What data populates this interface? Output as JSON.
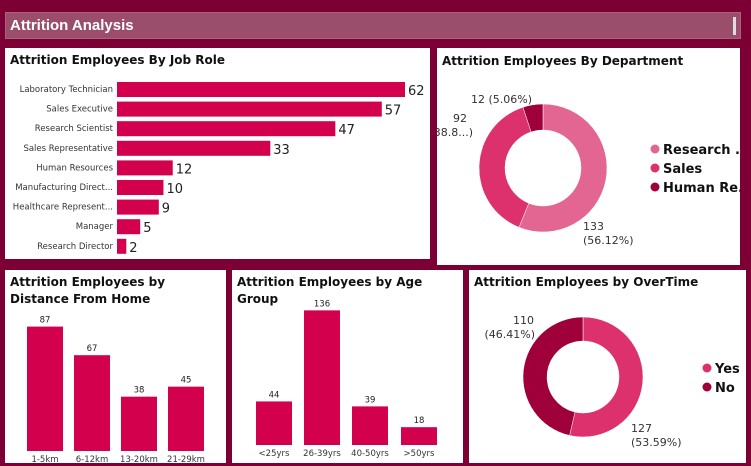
{
  "header": {
    "title": "Attrition Analysis"
  },
  "colors": {
    "bar": "#d3004e",
    "research": "#e36692",
    "sales": "#dc316c",
    "hr": "#a0003a",
    "yes": "#dc316c",
    "no": "#a0003a",
    "background": "#7c0033"
  },
  "chart_data": [
    {
      "type": "bar",
      "orientation": "horizontal",
      "title": "Attrition Employees By Job Role",
      "categories": [
        "Laboratory Technician",
        "Sales Executive",
        "Research Scientist",
        "Sales Representative",
        "Human Resources",
        "Manufacturing Direct...",
        "Healthcare Represent...",
        "Manager",
        "Research Director"
      ],
      "values": [
        62,
        57,
        47,
        33,
        12,
        10,
        9,
        5,
        2
      ]
    },
    {
      "type": "pie",
      "donut": true,
      "title": "Attrition Employees By Department",
      "categories": [
        "Research ...",
        "Sales",
        "Human Re..."
      ],
      "values": [
        133,
        92,
        12
      ],
      "labels": [
        "133 (56.12%)",
        "92 (38.8...)",
        "12 (5.06%)"
      ],
      "legend": "right"
    },
    {
      "type": "bar",
      "title": "Attrition Employees by Distance From Home",
      "categories": [
        "1-5km",
        "6-12km",
        "13-20km",
        "21-29km"
      ],
      "values": [
        87,
        67,
        38,
        45
      ]
    },
    {
      "type": "bar",
      "title": "Attrition Employees by Age Group",
      "categories": [
        "<25yrs",
        "26-39yrs",
        "40-50yrs",
        ">50yrs"
      ],
      "values": [
        44,
        136,
        39,
        18
      ]
    },
    {
      "type": "pie",
      "donut": true,
      "title": "Attrition Employees by OverTime",
      "categories": [
        "Yes",
        "No"
      ],
      "values": [
        127,
        110
      ],
      "labels": [
        "127 (53.59%)",
        "110 (46.41%)"
      ],
      "legend": "right"
    }
  ]
}
